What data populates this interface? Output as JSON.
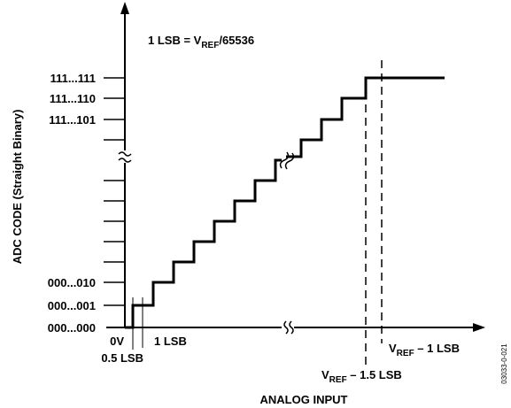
{
  "annotation": {
    "prefix": "1 LSB = V",
    "sub": "REF",
    "suffix": "/65536"
  },
  "y_axis": {
    "label": "ADC CODE (Straight Binary)",
    "ticks": {
      "top3": "111...111",
      "top2": "111...110",
      "top1": "111...101",
      "bot2": "000...010",
      "bot1": "000...001",
      "bot0": "000...000"
    }
  },
  "x_axis": {
    "label": "ANALOG INPUT",
    "origin": "0V",
    "half_lsb": "0.5 LSB",
    "one_lsb": "1 LSB",
    "vref_minus_1_5": {
      "prefix": "V",
      "sub": "REF",
      "suffix": " – 1.5 LSB"
    },
    "vref_minus_1": {
      "prefix": "V",
      "sub": "REF",
      "suffix": " – 1 LSB"
    }
  },
  "figure_id": "03033-0-021",
  "colors": {
    "ink": "#000000",
    "background": "#ffffff"
  }
}
